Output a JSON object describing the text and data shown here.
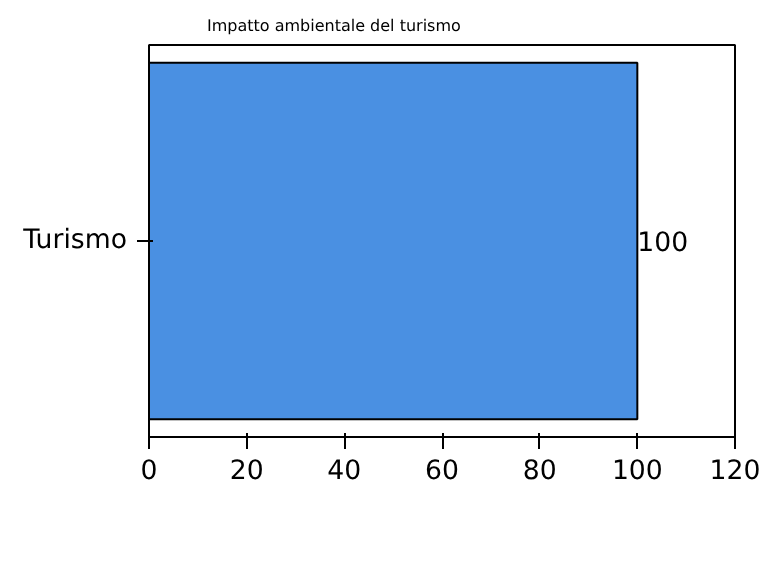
{
  "chart_data": {
    "type": "bar",
    "orientation": "horizontal",
    "title": "Impatto ambientale del turismo",
    "categories": [
      "Turismo"
    ],
    "series": [
      {
        "color": "#4a90e2",
        "values": [
          100
        ]
      }
    ],
    "data_labels": true,
    "xlim": [
      0,
      120
    ],
    "xticks": [
      0,
      20,
      40,
      60,
      80,
      100,
      120
    ],
    "grid": false
  }
}
